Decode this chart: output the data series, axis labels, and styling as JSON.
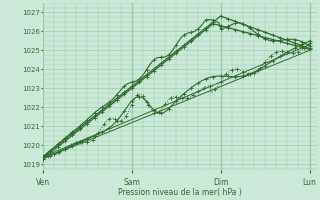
{
  "bg_color": "#cce8d8",
  "grid_color": "#99ccaa",
  "line_color": "#2d6a2d",
  "text_color": "#2d6a2d",
  "ylabel_ticks": [
    1019,
    1020,
    1021,
    1022,
    1023,
    1024,
    1025,
    1026,
    1027
  ],
  "ylim": [
    1018.7,
    1027.5
  ],
  "xlabel": "Pression niveau de la mer( hPa )",
  "xtick_labels": [
    "Ven",
    "Sam",
    "Dim",
    "Lun"
  ],
  "xtick_positions": [
    0,
    48,
    96,
    144
  ],
  "xlim": [
    0,
    148
  ],
  "total_hours": 144
}
